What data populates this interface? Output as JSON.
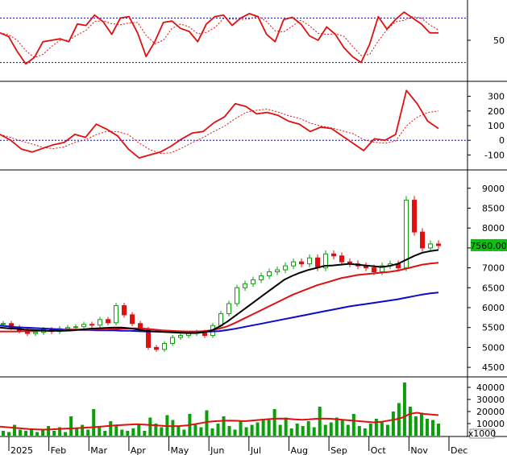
{
  "chart_data": [
    {
      "panel": "stochastic",
      "type": "line",
      "ylim": [
        0,
        100
      ],
      "y_ticks": [
        "50"
      ],
      "reference_lines": [
        80,
        20
      ],
      "series": [
        {
          "values": [
            60,
            55,
            35,
            18,
            27,
            48,
            50,
            52,
            48,
            72,
            70,
            84,
            75,
            58,
            80,
            82,
            60,
            28,
            48,
            74,
            76,
            66,
            62,
            48,
            72,
            82,
            84,
            70,
            80,
            86,
            82,
            58,
            48,
            78,
            81,
            72,
            56,
            50,
            68,
            58,
            40,
            28,
            20,
            45,
            82,
            65,
            78,
            88,
            80,
            72,
            60,
            60
          ]
        }
      ]
    },
    {
      "panel": "macd",
      "type": "line",
      "ylim": [
        -180,
        380
      ],
      "y_ticks": [
        "300",
        "200",
        "100",
        "0",
        "-100"
      ],
      "reference_lines": [
        0
      ],
      "series": [
        {
          "values": [
            40,
            0,
            -60,
            -80,
            -55,
            -30,
            -15,
            40,
            20,
            110,
            75,
            30,
            -60,
            -120,
            -100,
            -80,
            -40,
            10,
            50,
            60,
            120,
            160,
            250,
            230,
            180,
            190,
            170,
            130,
            110,
            60,
            90,
            80,
            30,
            -20,
            -70,
            10,
            0,
            40,
            340,
            250,
            130,
            80
          ]
        }
      ]
    },
    {
      "panel": "price",
      "type": "candlestick",
      "ylim": [
        4300,
        9400
      ],
      "y_ticks": [
        "9000",
        "8500",
        "8000",
        "7500",
        "7000",
        "6500",
        "6000",
        "5500",
        "5000",
        "4500"
      ],
      "last_price": "7560.00",
      "x_ticks": [
        "2025",
        "Feb",
        "Mar",
        "Apr",
        "May",
        "Jun",
        "Jul",
        "Aug",
        "Sep",
        "Oct",
        "Nov",
        "Dec"
      ],
      "close": [
        5600,
        5500,
        5420,
        5350,
        5380,
        5450,
        5400,
        5470,
        5500,
        5520,
        5580,
        5560,
        5700,
        5620,
        6050,
        5820,
        5600,
        5450,
        5000,
        4950,
        5100,
        5250,
        5300,
        5350,
        5380,
        5300,
        5550,
        5850,
        6100,
        6500,
        6600,
        6700,
        6800,
        6900,
        6950,
        7050,
        7150,
        7100,
        7250,
        7000,
        7350,
        7300,
        7150,
        7100,
        7050,
        7000,
        6900,
        7050,
        7100,
        7000,
        8700,
        7900,
        7500,
        7600,
        7560
      ],
      "ma_black": [
        5500,
        5480,
        5470,
        5450,
        5440,
        5430,
        5420,
        5420,
        5420,
        5430,
        5450,
        5470,
        5480,
        5490,
        5500,
        5500,
        5480,
        5450,
        5420,
        5400,
        5390,
        5380,
        5370,
        5360,
        5360,
        5380,
        5420,
        5520,
        5650,
        5800,
        5950,
        6100,
        6250,
        6400,
        6550,
        6700,
        6800,
        6880,
        6950,
        7000,
        7050,
        7060,
        7080,
        7100,
        7080,
        7060,
        7040,
        7020,
        7050,
        7100,
        7200,
        7300,
        7380,
        7420,
        7450
      ],
      "ma_red": [
        5400,
        5400,
        5400,
        5410,
        5410,
        5420,
        5420,
        5430,
        5440,
        5450,
        5450,
        5450,
        5450,
        5450,
        5460,
        5470,
        5480,
        5480,
        5470,
        5450,
        5430,
        5420,
        5410,
        5400,
        5400,
        5410,
        5430,
        5470,
        5530,
        5620,
        5720,
        5820,
        5920,
        6020,
        6120,
        6220,
        6320,
        6400,
        6480,
        6560,
        6620,
        6680,
        6740,
        6780,
        6820,
        6840,
        6860,
        6880,
        6900,
        6930,
        6980,
        7030,
        7080,
        7110,
        7130
      ],
      "ma_blue": [
        5550,
        5530,
        5510,
        5500,
        5490,
        5480,
        5470,
        5460,
        5450,
        5450,
        5440,
        5440,
        5430,
        5430,
        5430,
        5420,
        5420,
        5410,
        5400,
        5400,
        5400,
        5390,
        5390,
        5390,
        5390,
        5390,
        5400,
        5410,
        5440,
        5470,
        5510,
        5550,
        5590,
        5630,
        5670,
        5710,
        5750,
        5790,
        5830,
        5870,
        5910,
        5950,
        5990,
        6030,
        6060,
        6090,
        6120,
        6150,
        6180,
        6210,
        6250,
        6290,
        6330,
        6360,
        6380
      ]
    },
    {
      "panel": "volume",
      "type": "bar",
      "ylim": [
        0,
        46000
      ],
      "y_ticks": [
        "40000",
        "30000",
        "20000",
        "10000"
      ],
      "unit_label": "x1000",
      "values": [
        4000,
        3000,
        9000,
        5000,
        4000,
        6000,
        3000,
        5000,
        8000,
        4000,
        7000,
        3000,
        16000,
        6000,
        9000,
        5000,
        22000,
        7000,
        4000,
        12000,
        8000,
        5000,
        4000,
        6000,
        9000,
        4000,
        15000,
        10000,
        7000,
        17000,
        13000,
        8000,
        5000,
        18000,
        9000,
        7000,
        21000,
        6000,
        10000,
        16000,
        8000,
        5000,
        12000,
        7000,
        9000,
        11000,
        14000,
        13000,
        22000,
        9000,
        15000,
        6000,
        10000,
        8000,
        12000,
        7000,
        24000,
        9000,
        11000,
        15000,
        13000,
        9000,
        18000,
        8000,
        6000,
        10000,
        14000,
        12000,
        9000,
        20000,
        27000,
        44000,
        24000,
        16000,
        19000,
        14000,
        13000,
        10000
      ],
      "ma": [
        7500,
        7000,
        6500,
        6000,
        5500,
        5200,
        5000,
        5200,
        5500,
        5800,
        6000,
        6300,
        6700,
        7000,
        7500,
        8000,
        8500,
        8800,
        9200,
        9500,
        9200,
        8800,
        8400,
        8000,
        7800,
        8000,
        8500,
        9500,
        10500,
        11500,
        12000,
        12300,
        12500,
        12300,
        12000,
        12500,
        13000,
        13500,
        14000,
        14200,
        14000,
        13500,
        13200,
        13500,
        14000,
        14200,
        14000,
        13500,
        13000,
        12500,
        12000,
        11500,
        11000,
        11500,
        12500,
        13500,
        15000,
        18000,
        19000,
        18000,
        17500,
        17000
      ]
    }
  ],
  "colors": {
    "red": "#e01010",
    "black": "#000000",
    "blue": "#0a0ad0",
    "green": "#0aa00a",
    "dashed_blue": "#1010a0",
    "label_bg": "#10c010"
  }
}
